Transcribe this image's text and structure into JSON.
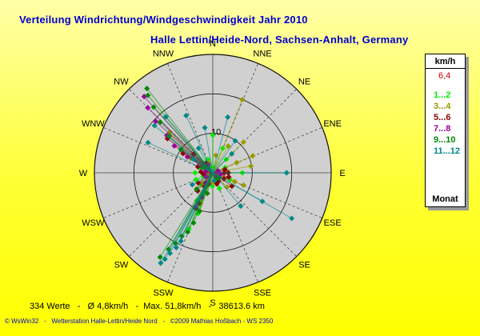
{
  "header": {
    "title": "Verteilung Windrichtung/Windgeschwindigkeit  Jahr 2010",
    "subtitle": "Halle Lettin/Heide-Nord, Sachsen-Anhalt, Germany"
  },
  "chart_data": {
    "type": "scatter",
    "subtype": "polar wind rose",
    "directions": [
      "N",
      "NNE",
      "NE",
      "ENE",
      "E",
      "ESE",
      "SE",
      "SSE",
      "S",
      "SSW",
      "SW",
      "WSW",
      "W",
      "WNW",
      "NW",
      "NNW"
    ],
    "radial_unit": "km/h",
    "radial_range": [
      0,
      30
    ],
    "ring_label": "10",
    "rings": [
      10,
      20,
      30
    ],
    "grid": true,
    "legend_position": "right",
    "colors": {
      "plot_bg": "#d0d0d0",
      "ring": "#111111",
      "spoke": "#444444"
    },
    "max_label": "6,4",
    "series": [
      {
        "name": "1...2",
        "color": "#00ee00",
        "points": [
          [
            0,
            9.5
          ],
          [
            22,
            6.7
          ],
          [
            45,
            4.8
          ],
          [
            67,
            3.4
          ],
          [
            90,
            7.5
          ],
          [
            112,
            4.7
          ],
          [
            157,
            4.3
          ],
          [
            182,
            3.4
          ],
          [
            200,
            11
          ],
          [
            203,
            15.5
          ],
          [
            225,
            4.1
          ],
          [
            248,
            4.6
          ],
          [
            270,
            4.5
          ],
          [
            290,
            3.4
          ],
          [
            305,
            3.3
          ],
          [
            318,
            1.7
          ],
          [
            340,
            3.6
          ],
          [
            358,
            1.5
          ],
          [
            210,
            8.1
          ],
          [
            250,
            2.6
          ]
        ]
      },
      {
        "name": "3...4",
        "color": "#999900",
        "points": [
          [
            22,
            20
          ],
          [
            45,
            11
          ],
          [
            67,
            11
          ],
          [
            67,
            6.6
          ],
          [
            90,
            4
          ],
          [
            112,
            6
          ],
          [
            112,
            8.4
          ],
          [
            135,
            5.1
          ],
          [
            157,
            2.5
          ],
          [
            182,
            2.5
          ],
          [
            202,
            8.4
          ],
          [
            225,
            3.7
          ],
          [
            248,
            2.1
          ],
          [
            270,
            1.7
          ],
          [
            303,
            6.6
          ],
          [
            313,
            15
          ],
          [
            340,
            2.7
          ],
          [
            10,
            4.5
          ],
          [
            30,
            7.8
          ],
          [
            80,
            9.8
          ]
        ]
      },
      {
        "name": "5...6",
        "color": "#880000",
        "points": [
          [
            75,
            3.2
          ],
          [
            90,
            2.9
          ],
          [
            90,
            3.9
          ],
          [
            105,
            4.2
          ],
          [
            118,
            3.2
          ],
          [
            125,
            5.9
          ],
          [
            145,
            2.6
          ],
          [
            160,
            3
          ],
          [
            205,
            8.5
          ],
          [
            206,
            10
          ],
          [
            210,
            4.1
          ],
          [
            220,
            6
          ],
          [
            235,
            4.5
          ],
          [
            260,
            2.3
          ],
          [
            275,
            3
          ],
          [
            292,
            4.1
          ],
          [
            303,
            9
          ],
          [
            307,
            14.4
          ],
          [
            314,
            6.8
          ],
          [
            325,
            3
          ]
        ]
      },
      {
        "name": "7...8",
        "color": "#990099",
        "points": [
          [
            70,
            1.4
          ],
          [
            100,
            2
          ],
          [
            140,
            1.4
          ],
          [
            200,
            3
          ],
          [
            204,
            6.8
          ],
          [
            207,
            9.6
          ],
          [
            215,
            3.1
          ],
          [
            240,
            2
          ],
          [
            280,
            1.9
          ],
          [
            300,
            3
          ],
          [
            302,
            7.6
          ],
          [
            305,
            11.9
          ],
          [
            309,
            15
          ],
          [
            312,
            19.5
          ],
          [
            315,
            23.3
          ],
          [
            318,
            26
          ],
          [
            330,
            2.3
          ]
        ]
      },
      {
        "name": "9...10",
        "color": "#008800",
        "points": [
          [
            130,
            2
          ],
          [
            160,
            1.9
          ],
          [
            195,
            5.4
          ],
          [
            199,
            10.3
          ],
          [
            201,
            13.6
          ],
          [
            203,
            16.3
          ],
          [
            206,
            17.9
          ],
          [
            208,
            20.2
          ],
          [
            210,
            22.4
          ],
          [
            212,
            25.2
          ],
          [
            225,
            5.8
          ],
          [
            300,
            2.7
          ],
          [
            306,
            10
          ],
          [
            310,
            14.4
          ],
          [
            314,
            18.5
          ],
          [
            318,
            22.4
          ],
          [
            320,
            25.6
          ],
          [
            322,
            27.1
          ]
        ]
      },
      {
        "name": "11...12",
        "color": "#008888",
        "points": [
          [
            15,
            14.6
          ],
          [
            35,
            9.9
          ],
          [
            45,
            6.8
          ],
          [
            90,
            18.7
          ],
          [
            120,
            14.5
          ],
          [
            120,
            23.1
          ],
          [
            140,
            11
          ],
          [
            170,
            2
          ],
          [
            205,
            19.1
          ],
          [
            206,
            21.1
          ],
          [
            208,
            23.1
          ],
          [
            209,
            25
          ],
          [
            210,
            26.4
          ],
          [
            240,
            6
          ],
          [
            295,
            18.1
          ],
          [
            305,
            6
          ],
          [
            309,
            19
          ],
          [
            320,
            18.5
          ],
          [
            330,
            7.2
          ],
          [
            335,
            16
          ],
          [
            350,
            11.6
          ]
        ]
      }
    ],
    "footer_label": "Monat"
  },
  "stats": {
    "text": "334 Werte   -   Ø 4,8km/h   -  Max. 51,8km/h   -   38613.6 km"
  },
  "footer": {
    "text": "© WsWin32   -   Wetterstation Halle-Lettin/Heide Nord   -   ©2009 Mathias Hoßbach - WS 2350"
  }
}
